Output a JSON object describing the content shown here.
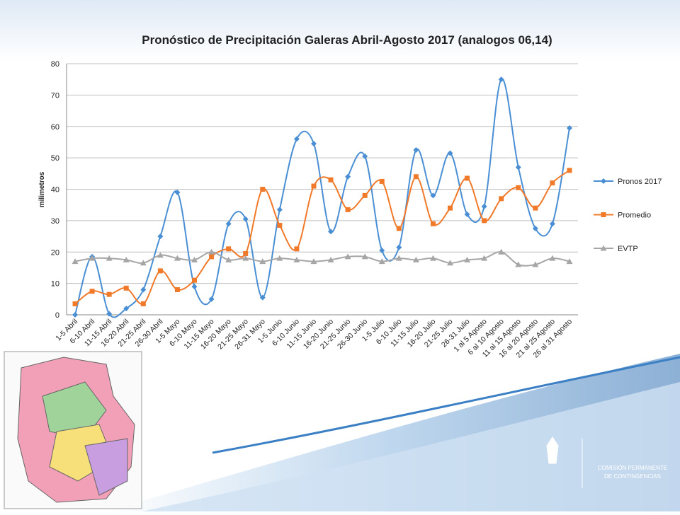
{
  "chart_data": {
    "type": "line",
    "title": "Pronóstico de Precipitación  Galeras Abril-Agosto 2017 (analogos 06,14)",
    "y_label": "milimetros",
    "categories": [
      "1-5 Abril",
      "6-10 Abril",
      "11-15 Abril",
      "16-20 Abril",
      "21-25 Abril",
      "26-30 Abril",
      "1-5 Mayo",
      "6-10 Mayo",
      "11-15 Mayo",
      "16-20 Mayo",
      "21-25 Mayo",
      "26-31 Mayo",
      "1-5 Junio",
      "6-10 Junio",
      "11-15 Junio",
      "16-20 Junio",
      "21-25 Junio",
      "26-30 Junio",
      "1-5 Julio",
      "6-10 Julio",
      "11-15 Julio",
      "16-20 Julio",
      "21-25 Julio",
      "26-31 Julio",
      "1 al 5 Agosto",
      "6 al 10 Agosto",
      "11 al 15 Agosto",
      "16 al 20 Agosto",
      "21 al 25 Agosto",
      "26 al 31 Agosto"
    ],
    "series": [
      {
        "name": "Pronos 2017",
        "color": "#4a8fd4",
        "marker": "diamond",
        "values": [
          0,
          18.5,
          0.3,
          2,
          8,
          25,
          39,
          9,
          5,
          29,
          30.5,
          5.5,
          33.5,
          56,
          54.5,
          26.5,
          44,
          50.5,
          20.5,
          21.5,
          52.5,
          38,
          51.5,
          32,
          34.5,
          75,
          47,
          27.5,
          29,
          59.5
        ]
      },
      {
        "name": "Promedio",
        "color": "#f0792a",
        "marker": "square",
        "values": [
          3.5,
          7.5,
          6.5,
          8.5,
          3.5,
          14,
          8,
          11,
          18.5,
          21,
          19.5,
          40,
          28.5,
          21,
          41,
          43,
          33.5,
          38,
          42.5,
          27.5,
          44,
          29,
          34,
          43.5,
          30,
          37,
          40.5,
          34,
          42,
          46
        ]
      },
      {
        "name": "EVTP",
        "color": "#a6a6a6",
        "marker": "triangle",
        "values": [
          17,
          18,
          18,
          17.5,
          16.5,
          19,
          18,
          17.5,
          20,
          17.5,
          18,
          17,
          18,
          17.5,
          17,
          17.5,
          18.5,
          18.5,
          17,
          18,
          17.5,
          18,
          16.5,
          17.5,
          18,
          20,
          16,
          16,
          18,
          17
        ]
      }
    ],
    "smooth": true,
    "ylim": [
      0,
      80
    ],
    "yticks": [
      0,
      10,
      20,
      30,
      40,
      50,
      60,
      70,
      80
    ],
    "grid": true,
    "legend": "right"
  },
  "logo": {
    "lines": [
      "COMISIÓN PERMANENTE",
      "DE CONTINGENCIAS"
    ]
  }
}
